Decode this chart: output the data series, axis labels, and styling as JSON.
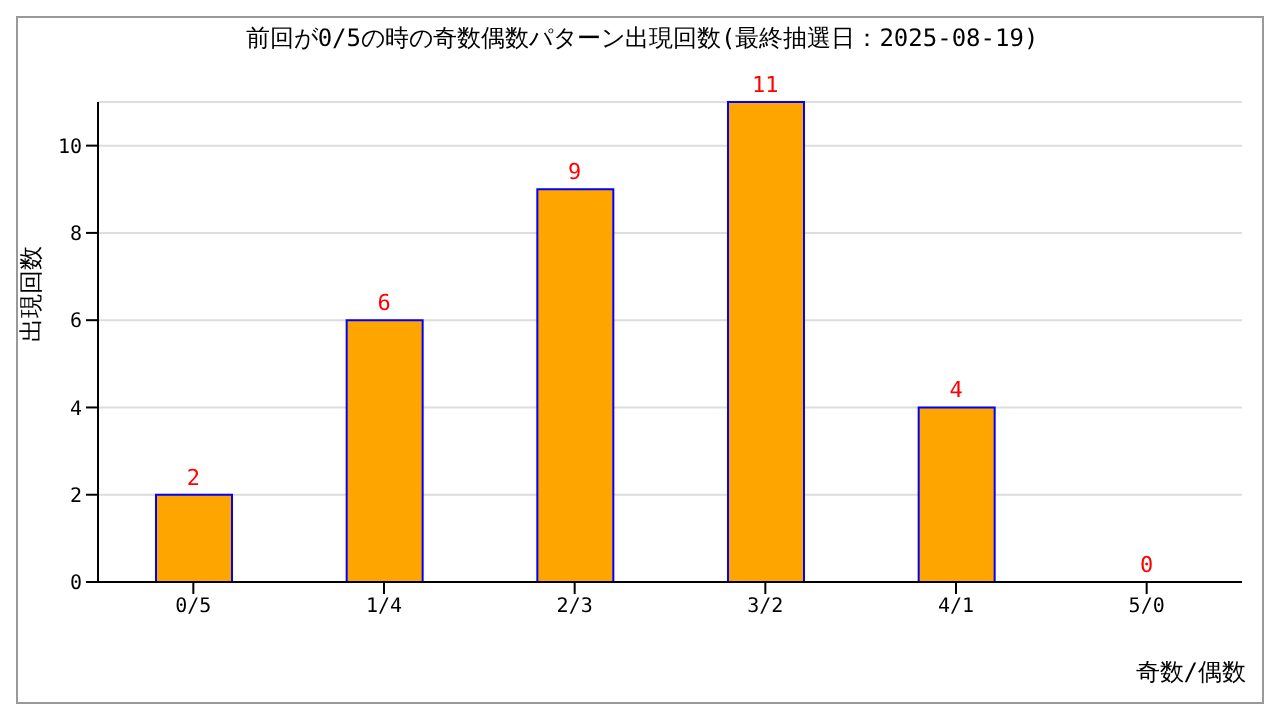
{
  "chart_data": {
    "type": "bar",
    "title": "前回が0/5の時の奇数偶数パターン出現回数(最終抽選日：2025-08-19)",
    "xlabel": "奇数/偶数",
    "ylabel": "出現回数",
    "categories": [
      "0/5",
      "1/4",
      "2/3",
      "3/2",
      "4/1",
      "5/0"
    ],
    "values": [
      2,
      6,
      9,
      11,
      4,
      0
    ],
    "color": "#ffa500",
    "ylim": [
      0,
      11
    ],
    "yticks": [
      0,
      2,
      4,
      6,
      8,
      10
    ],
    "grid": "y",
    "data_labels": true,
    "legend": false
  }
}
